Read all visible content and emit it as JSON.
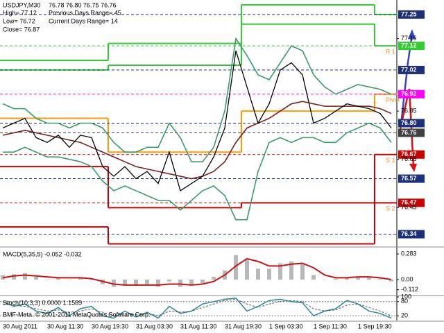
{
  "chart_data": [
    {
      "type": "price",
      "annotations": [
        "USDJPY,M30",
        "76.78 76.80 76.75 76.76",
        "High= 77.12",
        "Previous Days Range= 45",
        "Low= 76.72",
        "Current Days Range= 14",
        "Close= 76.87"
      ],
      "categories": [
        "30 Aug 2011",
        null,
        null,
        null,
        "30 Aug 11:30",
        null,
        null,
        null,
        "30 Aug 19:30",
        null,
        null,
        null,
        "31 Aug 03:30",
        null,
        null,
        null,
        "31 Aug 11:30",
        null,
        null,
        null,
        "31 Aug 19:30",
        null,
        null,
        null,
        "1 Sep 03:30",
        null,
        null,
        null,
        "1 Sep 11:30",
        null,
        null,
        null,
        "1 Sep 19:30",
        null,
        null,
        null
      ],
      "ylim": [
        76.29,
        77.31
      ],
      "yticks": [
        77.15,
        76.85,
        76.65,
        76.45
      ],
      "series": [
        {
          "color": "#3a9a6a",
          "values": [
            76.88,
            76.86,
            76.86,
            76.82,
            76.8,
            76.8,
            76.78,
            76.8,
            76.8,
            76.78,
            76.72,
            76.68,
            76.68,
            76.7,
            76.7,
            76.8,
            76.74,
            76.64,
            76.64,
            76.7,
            76.85,
            77.15,
            77.08,
            77.0,
            76.98,
            77.05,
            77.12,
            77.1,
            77.0,
            76.95,
            76.92,
            76.94,
            76.96,
            76.95,
            76.94,
            76.92
          ]
        },
        {
          "color": "#3a9a6a",
          "values": [
            76.68,
            76.68,
            76.7,
            76.68,
            76.66,
            76.66,
            76.65,
            76.64,
            76.62,
            76.56,
            76.52,
            76.54,
            76.52,
            76.5,
            76.48,
            76.48,
            76.44,
            76.48,
            76.52,
            76.54,
            76.5,
            76.4,
            76.4,
            76.6,
            76.72,
            76.74,
            76.72,
            76.74,
            76.74,
            76.72,
            76.72,
            76.76,
            76.78,
            76.8,
            76.78,
            76.72
          ]
        },
        {
          "color": "#7a1f1f",
          "values": [
            76.75,
            76.76,
            76.77,
            76.76,
            76.75,
            76.74,
            76.73,
            76.72,
            76.7,
            76.68,
            76.66,
            76.64,
            76.62,
            76.61,
            76.6,
            76.59,
            76.58,
            76.57,
            76.58,
            76.6,
            76.64,
            76.72,
            76.78,
            76.8,
            76.82,
            76.85,
            76.88,
            76.89,
            76.88,
            76.87,
            76.87,
            76.87,
            76.87,
            76.87,
            76.86,
            76.84
          ]
        },
        {
          "color": "#000000",
          "values": [
            76.78,
            76.8,
            76.82,
            76.74,
            76.72,
            76.75,
            76.7,
            76.75,
            76.74,
            76.62,
            76.58,
            76.62,
            76.57,
            76.6,
            76.55,
            76.68,
            76.52,
            76.55,
            76.58,
            76.66,
            76.78,
            77.1,
            76.95,
            76.8,
            76.88,
            77.02,
            77.05,
            77.0,
            76.8,
            76.82,
            76.85,
            76.88,
            76.87,
            76.86,
            76.84,
            76.78
          ]
        }
      ],
      "day_first_index": [
        0,
        10,
        22,
        34
      ],
      "step_levels": [
        {
          "color": "#33cc33",
          "values": [
            77.06,
            77.13,
            77.29,
            77.25
          ]
        },
        {
          "color": "#33cc33",
          "values": [
            77.02,
            77.04,
            77.21,
            77.12
          ]
        },
        {
          "color": "#ff9900",
          "values": [
            76.82,
            76.68,
            76.85,
            76.92
          ]
        },
        {
          "color": "#cc0000",
          "values": [
            76.62,
            76.45,
            76.47,
            76.67
          ]
        },
        {
          "color": "#cc0000",
          "values": [
            76.37,
            76.3,
            76.3,
            76.47
          ]
        }
      ],
      "levels": [
        {
          "value": 77.25,
          "color": "#1c2f7a"
        },
        {
          "value": 77.12,
          "color": "#33cc33",
          "name": "R 1"
        },
        {
          "value": 77.02,
          "color": "#1c2f7a"
        },
        {
          "value": 76.92,
          "color": "#ff00ff",
          "name": "Pivot"
        },
        {
          "value": {
            "value": 76.8,
            "label": "76.80"
          },
          "color": "#1c2f7a"
        },
        {
          "value": 76.76,
          "color": "#404040"
        },
        {
          "value": 76.67,
          "color": "#cc0000",
          "name": "S 1"
        },
        {
          "value": 76.57,
          "color": "#1c2f7a"
        },
        {
          "value": 76.47,
          "color": "#cc0000",
          "name": "S 2"
        },
        {
          "value": 76.34,
          "color": "#1c2f7a"
        }
      ]
    },
    {
      "type": "macd",
      "title": "MACD(5,35,5) -0.052 -0.032",
      "ylim": [
        -0.168,
        0.344
      ],
      "yticks": [
        0.283,
        {
          "value": 0,
          "label": "0.00"
        },
        -0.112
      ],
      "series": [
        {
          "type": "bar",
          "color": "#b8b8b8",
          "values": [
            0.05,
            0.06,
            0.07,
            0.03,
            0.0,
            0.02,
            0.0,
            0.02,
            0.01,
            -0.05,
            -0.08,
            -0.06,
            -0.07,
            -0.05,
            -0.08,
            -0.02,
            -0.08,
            -0.06,
            -0.04,
            0.03,
            0.1,
            0.27,
            0.22,
            0.12,
            0.12,
            0.18,
            0.2,
            0.17,
            0.05,
            0.0,
            0.01,
            0.02,
            0.03,
            0.02,
            0.01,
            -0.02
          ]
        },
        {
          "type": "line",
          "color": "#cc1111",
          "values": [
            0.02,
            0.04,
            0.05,
            0.04,
            0.03,
            0.02,
            0.02,
            0.02,
            0.01,
            -0.02,
            -0.05,
            -0.06,
            -0.06,
            -0.06,
            -0.06,
            -0.05,
            -0.05,
            -0.06,
            -0.05,
            -0.02,
            0.05,
            0.15,
            0.23,
            0.2,
            0.15,
            0.15,
            0.17,
            0.18,
            0.13,
            0.05,
            0.02,
            0.02,
            0.03,
            0.03,
            0.02,
            0.0
          ]
        }
      ]
    },
    {
      "type": "stoch",
      "title": "Stoch(10,3,3) 0.0000 1.1589",
      "annotation": "BMF-Meta. © 2001-2011 MetaQuotes Software Corp.",
      "ylim": [
        0,
        100
      ],
      "yticks": [
        100,
        80,
        20
      ],
      "series": [
        {
          "color": "#2a8a9a",
          "values": [
            80,
            60,
            70,
            40,
            30,
            55,
            20,
            50,
            60,
            20,
            10,
            40,
            15,
            35,
            10,
            60,
            30,
            40,
            70,
            80,
            90,
            95,
            40,
            60,
            85,
            90,
            80,
            75,
            20,
            40,
            50,
            85,
            70,
            40,
            30,
            10
          ]
        },
        {
          "color": "#555555",
          "dash": true,
          "values": [
            70,
            65,
            60,
            50,
            40,
            45,
            35,
            40,
            50,
            35,
            20,
            30,
            25,
            30,
            20,
            40,
            35,
            40,
            55,
            70,
            85,
            90,
            70,
            55,
            70,
            80,
            85,
            80,
            50,
            40,
            45,
            65,
            70,
            55,
            40,
            20
          ]
        }
      ]
    }
  ]
}
